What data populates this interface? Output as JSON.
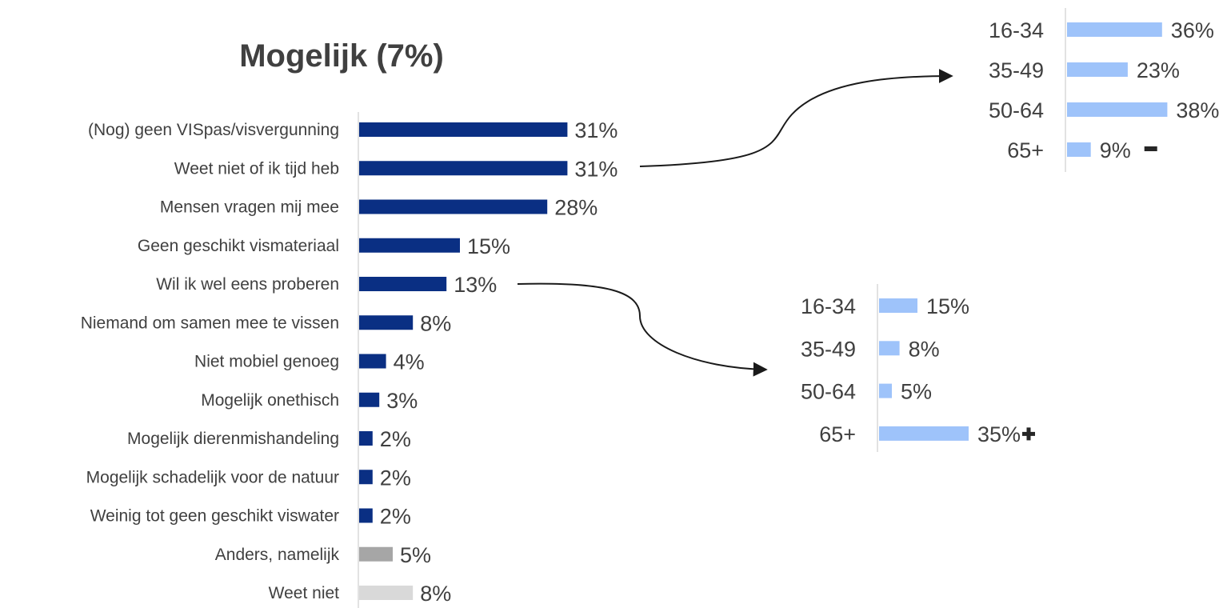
{
  "chart_data": [
    {
      "type": "bar",
      "orientation": "horizontal",
      "title": "Mogelijk (7%)",
      "categories": [
        "(Nog) geen VISpas/visvergunning",
        "Weet niet of ik tijd heb",
        "Mensen vragen mij mee",
        "Geen geschikt vismateriaal",
        "Wil ik wel eens proberen",
        "Niemand om samen mee te vissen",
        "Niet mobiel genoeg",
        "Mogelijk onethisch",
        "Mogelijk dierenmishandeling",
        "Mogelijk schadelijk voor de natuur",
        "Weinig tot geen geschikt viswater",
        "Anders, namelijk",
        "Weet niet"
      ],
      "values": [
        31,
        31,
        28,
        15,
        13,
        8,
        4,
        3,
        2,
        2,
        2,
        5,
        8
      ],
      "value_labels": [
        "31%",
        "31%",
        "28%",
        "15%",
        "13%",
        "8%",
        "4%",
        "3%",
        "2%",
        "2%",
        "2%",
        "5%",
        "8%"
      ],
      "bar_colors": [
        "#0a2f83",
        "#0a2f83",
        "#0a2f83",
        "#0a2f83",
        "#0a2f83",
        "#0a2f83",
        "#0a2f83",
        "#0a2f83",
        "#0a2f83",
        "#0a2f83",
        "#0a2f83",
        "#a6a6a6",
        "#d9d9d9"
      ],
      "unit": "%"
    },
    {
      "type": "bar",
      "orientation": "horizontal",
      "linked_to_category": "Weet niet of ik tijd heb",
      "categories": [
        "16-34",
        "35-49",
        "50-64",
        "65+"
      ],
      "values": [
        36,
        23,
        38,
        9
      ],
      "value_labels": [
        "36%",
        "23%",
        "38%",
        "9%"
      ],
      "significance": [
        "",
        "",
        "",
        "minus"
      ],
      "bar_color": "#9ec3fa",
      "unit": "%"
    },
    {
      "type": "bar",
      "orientation": "horizontal",
      "linked_to_category": "Wil ik wel eens proberen",
      "categories": [
        "16-34",
        "35-49",
        "50-64",
        "65+"
      ],
      "values": [
        15,
        8,
        5,
        35
      ],
      "value_labels": [
        "15%",
        "8%",
        "5%",
        "35%"
      ],
      "significance": [
        "",
        "",
        "",
        "plus"
      ],
      "bar_color": "#9ec3fa",
      "unit": "%"
    }
  ],
  "colors": {
    "text": "#404040",
    "axis": "#d9d9d9",
    "arrow": "#1a1a1a",
    "significance_marker": "#262626"
  }
}
